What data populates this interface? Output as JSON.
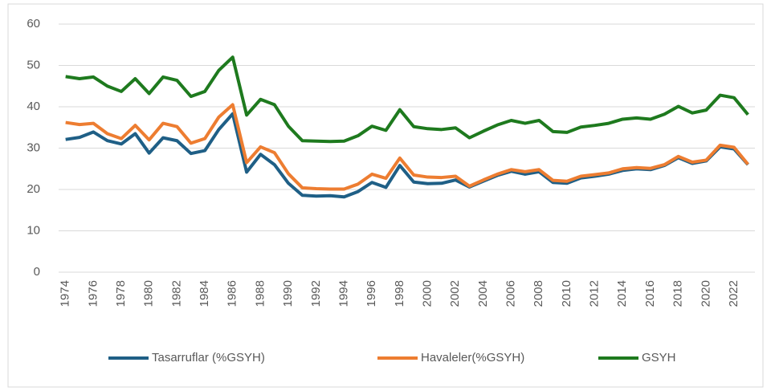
{
  "chart_data": {
    "type": "line",
    "categories": [
      "1974",
      null,
      "1976",
      null,
      "1978",
      null,
      "1980",
      null,
      "1982",
      null,
      "1984",
      null,
      "1986",
      null,
      "1988",
      null,
      "1990",
      null,
      "1992",
      null,
      "1994",
      null,
      "1996",
      null,
      "1998",
      null,
      "2000",
      null,
      "2002",
      null,
      "2004",
      null,
      "2006",
      null,
      "2008",
      null,
      "2010",
      null,
      "2012",
      null,
      "2014",
      null,
      "2016",
      null,
      "2018",
      null,
      "2020",
      null,
      "2022",
      null
    ],
    "series": [
      {
        "name": "Tasarruflar (%GSYH)",
        "color": "#1f5f86",
        "values": [
          32.1,
          32.6,
          33.9,
          31.8,
          31,
          33.5,
          28.8,
          32.5,
          31.8,
          28.7,
          29.4,
          34.5,
          38.3,
          24.2,
          28.5,
          26,
          21.5,
          18.6,
          18.4,
          18.5,
          18.2,
          19.5,
          21.7,
          20.5,
          25.8,
          21.8,
          21.4,
          21.5,
          22.3,
          20.6,
          22,
          23.4,
          24.4,
          23.7,
          24.3,
          21.7,
          21.5,
          22.8,
          23.2,
          23.7,
          24.6,
          25,
          24.8,
          25.8,
          27.7,
          26.3,
          26.9,
          30.3,
          29.8,
          26
        ]
      },
      {
        "name": "Havaleler(%GSYH)",
        "color": "#ed7d31",
        "values": [
          36.2,
          35.7,
          36,
          33.5,
          32.3,
          35.5,
          32,
          36,
          35.2,
          31.2,
          32.3,
          37.5,
          40.5,
          26.5,
          30.3,
          28.9,
          23.8,
          20.4,
          20.2,
          20.1,
          20.1,
          21.3,
          23.7,
          22.7,
          27.6,
          23.5,
          23,
          22.9,
          23.2,
          20.8,
          22.3,
          23.7,
          24.8,
          24.3,
          24.8,
          22.2,
          22,
          23.2,
          23.6,
          24,
          25,
          25.3,
          25.1,
          26,
          28,
          26.6,
          27.1,
          30.7,
          30.2,
          26.1
        ]
      },
      {
        "name": "GSYH",
        "color": "#1e7a1e",
        "values": [
          47.3,
          46.8,
          47.2,
          45,
          43.7,
          46.8,
          43.2,
          47.2,
          46.4,
          42.5,
          43.7,
          48.8,
          52,
          38,
          41.8,
          40.5,
          35.3,
          31.8,
          31.7,
          31.6,
          31.7,
          33,
          35.3,
          34.3,
          39.3,
          35.2,
          34.7,
          34.5,
          34.9,
          32.5,
          34.1,
          35.6,
          36.7,
          36,
          36.7,
          34,
          33.8,
          35.1,
          35.5,
          36,
          37,
          37.3,
          37,
          38.2,
          40.1,
          38.5,
          39.2,
          42.8,
          42.2,
          38.1
        ]
      }
    ],
    "ylim": [
      0,
      60
    ],
    "yticks": [
      0,
      10,
      20,
      30,
      40,
      50,
      60
    ],
    "grid": true,
    "legend": "bottom"
  }
}
